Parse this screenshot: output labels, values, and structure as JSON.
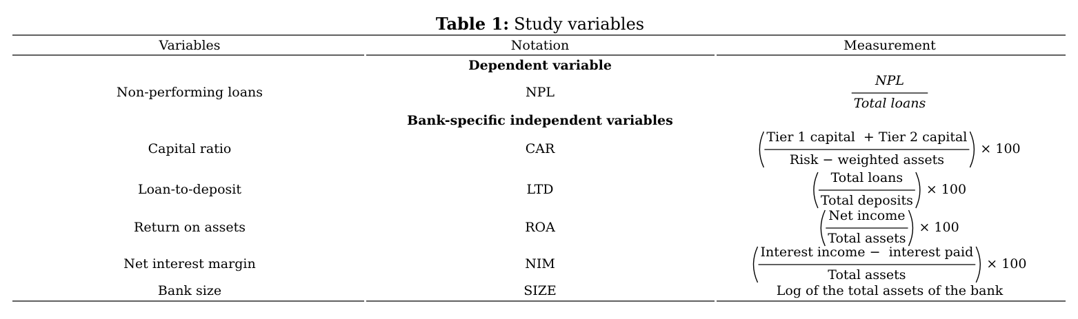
{
  "title": {
    "label": "Table 1:",
    "text": "Study variables"
  },
  "table": {
    "header": [
      "Variables",
      "Notation",
      "Measurement"
    ],
    "sections": [
      {
        "heading": "Dependent variable",
        "rows": [
          {
            "variable": "Non-performing loans",
            "notation": "NPL",
            "measurement": {
              "numerator": "NPL",
              "denominator": "Total loans"
            }
          }
        ]
      },
      {
        "heading": "Bank-specific independent variables",
        "rows": [
          {
            "variable": "Capital ratio",
            "notation": "CAR",
            "measurement": {
              "numerator": "Tier 1 capital  + Tier 2 capital",
              "denominator": "Risk − weighted assets",
              "multiplier": "× 100"
            }
          },
          {
            "variable": "Loan-to-deposit",
            "notation": "LTD",
            "measurement": {
              "numerator": "Total loans",
              "denominator": "Total deposits",
              "multiplier": "× 100"
            }
          },
          {
            "variable": "Return on assets",
            "notation": "ROA",
            "measurement": {
              "numerator": "Net income",
              "denominator": "Total assets",
              "multiplier": "× 100"
            }
          },
          {
            "variable": "Net interest margin",
            "notation": "NIM",
            "measurement": {
              "numerator": "Interest income −  interest paid",
              "denominator": "Total assets",
              "multiplier": "× 100"
            }
          },
          {
            "variable": "Bank size",
            "notation": "SIZE",
            "measurement": {
              "text": "Log of the total assets of the bank"
            }
          }
        ]
      }
    ]
  }
}
